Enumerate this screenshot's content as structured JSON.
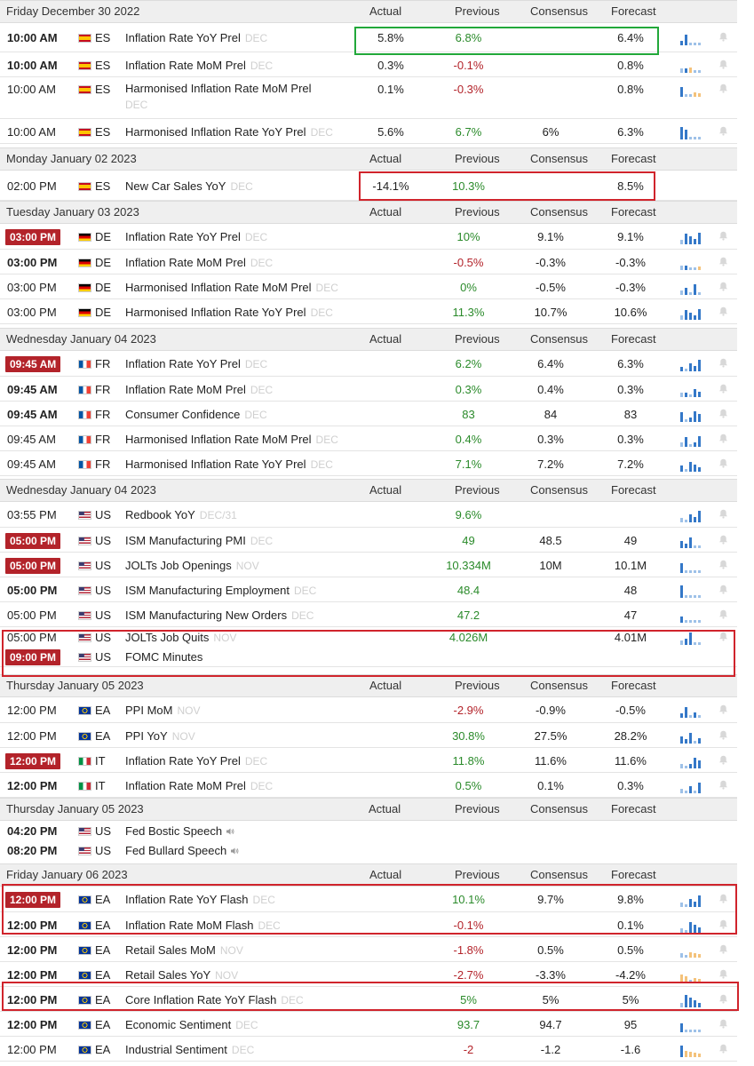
{
  "columns": {
    "actual": "Actual",
    "previous": "Previous",
    "consensus": "Consensus",
    "forecast": "Forecast"
  },
  "flags": {
    "ES": {
      "colors": [
        "#c60b1e",
        "#ffc400",
        "#c60b1e"
      ],
      "stripes": "h3",
      "ratio": [
        1,
        2,
        1
      ]
    },
    "DE": {
      "colors": [
        "#000000",
        "#dd0000",
        "#ffce00"
      ],
      "stripes": "h3",
      "ratio": [
        1,
        1,
        1
      ]
    },
    "FR": {
      "colors": [
        "#0055a4",
        "#ffffff",
        "#ef4135"
      ],
      "stripes": "v3",
      "ratio": [
        1,
        1,
        1
      ]
    },
    "IT": {
      "colors": [
        "#009246",
        "#ffffff",
        "#ce2b37"
      ],
      "stripes": "v3",
      "ratio": [
        1,
        1,
        1
      ]
    },
    "US": {
      "colors": [
        "#b22234",
        "#ffffff",
        "#3c3b6e"
      ],
      "stripes": "us",
      "ratio": [
        1,
        1,
        1
      ]
    },
    "EA": {
      "colors": [
        "#003399",
        "#ffcc00"
      ],
      "stripes": "eu",
      "ratio": [
        1,
        1
      ]
    }
  },
  "colors": {
    "positive": "#2a8a2a",
    "negative": "#b3232a",
    "highlight_red": "#d0242c",
    "highlight_green": "#22a83a",
    "header_bg": "#efefef"
  },
  "sections": [
    {
      "date": "Friday December 30 2022",
      "events": [
        {
          "time": "10:00 AM",
          "style": "bold",
          "country": "ES",
          "name": "Inflation Rate YoY Prel",
          "ref": "DEC",
          "actual": "5.8%",
          "previous": "6.8%",
          "previous_color": "green",
          "consensus": "",
          "forecast": "6.4%",
          "spark": [
            "b",
            "b",
            "g",
            "g",
            "g"
          ]
        },
        {
          "time": "10:00 AM",
          "style": "bold",
          "country": "ES",
          "name": "Inflation Rate MoM Prel",
          "ref": "DEC",
          "actual": "0.3%",
          "previous": "-0.1%",
          "previous_color": "red",
          "consensus": "",
          "forecast": "0.8%",
          "spark": [
            "g",
            "b",
            "o",
            "g",
            "g"
          ]
        },
        {
          "time": "10:00 AM",
          "style": "normal",
          "country": "ES",
          "name": "Harmonised Inflation Rate MoM Prel",
          "ref": "DEC",
          "actual": "0.1%",
          "previous": "-0.3%",
          "previous_color": "red",
          "consensus": "",
          "forecast": "0.8%",
          "spark": [
            "b",
            "g",
            "g",
            "o",
            "o"
          ],
          "two_line": true
        },
        {
          "time": "10:00 AM",
          "style": "normal",
          "country": "ES",
          "name": "Harmonised Inflation Rate YoY Prel",
          "ref": "DEC",
          "actual": "5.6%",
          "previous": "6.7%",
          "previous_color": "green",
          "consensus": "6%",
          "forecast": "6.3%",
          "spark": [
            "b",
            "b",
            "g",
            "g",
            "g"
          ]
        }
      ]
    },
    {
      "date": "Monday January 02 2023",
      "events": [
        {
          "time": "02:00 PM",
          "style": "normal",
          "country": "ES",
          "name": "New Car Sales YoY",
          "ref": "DEC",
          "actual": "-14.1%",
          "previous": "10.3%",
          "previous_color": "green",
          "consensus": "",
          "forecast": "8.5%",
          "spark": [],
          "no_bell": true
        }
      ]
    },
    {
      "date": "Tuesday January 03 2023",
      "events": [
        {
          "time": "03:00 PM",
          "style": "pill",
          "country": "DE",
          "name": "Inflation Rate YoY Prel",
          "ref": "DEC",
          "actual": "",
          "previous": "10%",
          "previous_color": "green",
          "consensus": "9.1%",
          "forecast": "9.1%",
          "spark": [
            "g",
            "b",
            "b",
            "b",
            "b"
          ]
        },
        {
          "time": "03:00 PM",
          "style": "bold",
          "country": "DE",
          "name": "Inflation Rate MoM Prel",
          "ref": "DEC",
          "actual": "",
          "previous": "-0.5%",
          "previous_color": "red",
          "consensus": "-0.3%",
          "forecast": "-0.3%",
          "spark": [
            "g",
            "b",
            "g",
            "g",
            "o"
          ]
        },
        {
          "time": "03:00 PM",
          "style": "normal",
          "country": "DE",
          "name": "Harmonised Inflation Rate MoM Prel",
          "ref": "DEC",
          "actual": "",
          "previous": "0%",
          "previous_color": "green",
          "consensus": "-0.5%",
          "forecast": "-0.3%",
          "spark": [
            "g",
            "b",
            "g",
            "b",
            "g"
          ]
        },
        {
          "time": "03:00 PM",
          "style": "normal",
          "country": "DE",
          "name": "Harmonised Inflation Rate YoY Prel",
          "ref": "DEC",
          "actual": "",
          "previous": "11.3%",
          "previous_color": "green",
          "consensus": "10.7%",
          "forecast": "10.6%",
          "spark": [
            "g",
            "b",
            "b",
            "b",
            "b"
          ]
        }
      ]
    },
    {
      "date": "Wednesday January 04 2023",
      "events": [
        {
          "time": "09:45 AM",
          "style": "pill",
          "country": "FR",
          "name": "Inflation Rate YoY Prel",
          "ref": "DEC",
          "actual": "",
          "previous": "6.2%",
          "previous_color": "green",
          "consensus": "6.4%",
          "forecast": "6.3%",
          "spark": [
            "b",
            "g",
            "b",
            "b",
            "b"
          ]
        },
        {
          "time": "09:45 AM",
          "style": "bold",
          "country": "FR",
          "name": "Inflation Rate MoM Prel",
          "ref": "DEC",
          "actual": "",
          "previous": "0.3%",
          "previous_color": "green",
          "consensus": "0.4%",
          "forecast": "0.3%",
          "spark": [
            "g",
            "b",
            "g",
            "b",
            "b"
          ]
        },
        {
          "time": "09:45 AM",
          "style": "bold",
          "country": "FR",
          "name": "Consumer Confidence",
          "ref": "DEC",
          "actual": "",
          "previous": "83",
          "previous_color": "green",
          "consensus": "84",
          "forecast": "83",
          "spark": [
            "b",
            "g",
            "b",
            "b",
            "b"
          ]
        },
        {
          "time": "09:45 AM",
          "style": "normal",
          "country": "FR",
          "name": "Harmonised Inflation Rate MoM Prel",
          "ref": "DEC",
          "actual": "",
          "previous": "0.4%",
          "previous_color": "green",
          "consensus": "0.3%",
          "forecast": "0.3%",
          "spark": [
            "g",
            "b",
            "g",
            "b",
            "b"
          ]
        },
        {
          "time": "09:45 AM",
          "style": "normal",
          "country": "FR",
          "name": "Harmonised Inflation Rate YoY Prel",
          "ref": "DEC",
          "actual": "",
          "previous": "7.1%",
          "previous_color": "green",
          "consensus": "7.2%",
          "forecast": "7.2%",
          "spark": [
            "b",
            "g",
            "b",
            "b",
            "b"
          ]
        }
      ]
    },
    {
      "date": "Wednesday January 04 2023",
      "events": [
        {
          "time": "03:55 PM",
          "style": "normal",
          "country": "US",
          "name": "Redbook YoY",
          "ref": "DEC/31",
          "actual": "",
          "previous": "9.6%",
          "previous_color": "green",
          "consensus": "",
          "forecast": "",
          "spark": [
            "g",
            "g",
            "b",
            "b",
            "b"
          ]
        },
        {
          "time": "05:00 PM",
          "style": "pill",
          "country": "US",
          "name": "ISM Manufacturing PMI",
          "ref": "DEC",
          "actual": "",
          "previous": "49",
          "previous_color": "green",
          "consensus": "48.5",
          "forecast": "49",
          "spark": [
            "b",
            "b",
            "b",
            "g",
            "g"
          ]
        },
        {
          "time": "05:00 PM",
          "style": "pill",
          "country": "US",
          "name": "JOLTs Job Openings",
          "ref": "NOV",
          "actual": "",
          "previous": "10.334M",
          "previous_color": "green",
          "consensus": "10M",
          "forecast": "10.1M",
          "spark": [
            "b",
            "g",
            "g",
            "g",
            "g"
          ]
        },
        {
          "time": "05:00 PM",
          "style": "bold",
          "country": "US",
          "name": "ISM Manufacturing Employment",
          "ref": "DEC",
          "actual": "",
          "previous": "48.4",
          "previous_color": "green",
          "consensus": "",
          "forecast": "48",
          "spark": [
            "b",
            "g",
            "g",
            "g",
            "g"
          ]
        },
        {
          "time": "05:00 PM",
          "style": "normal",
          "country": "US",
          "name": "ISM Manufacturing New Orders",
          "ref": "DEC",
          "actual": "",
          "previous": "47.2",
          "previous_color": "green",
          "consensus": "",
          "forecast": "47",
          "spark": [
            "b",
            "g",
            "g",
            "g",
            "g"
          ]
        },
        {
          "time": "05:00 PM",
          "style": "normal",
          "country": "US",
          "name": "JOLTs Job Quits",
          "ref": "NOV",
          "actual": "",
          "previous": "4.026M",
          "previous_color": "green",
          "consensus": "",
          "forecast": "4.01M",
          "spark": [
            "g",
            "b",
            "b",
            "g",
            "g"
          ],
          "no_border": true
        },
        {
          "time": "09:00 PM",
          "style": "pill",
          "country": "US",
          "name": "FOMC Minutes",
          "ref": "",
          "actual": "",
          "previous": "",
          "previous_color": "",
          "consensus": "",
          "forecast": "",
          "spark": [],
          "no_bell": true
        }
      ]
    },
    {
      "date": "Thursday January 05 2023",
      "events": [
        {
          "time": "12:00 PM",
          "style": "normal",
          "country": "EA",
          "name": "PPI MoM",
          "ref": "NOV",
          "actual": "",
          "previous": "-2.9%",
          "previous_color": "red",
          "consensus": "-0.9%",
          "forecast": "-0.5%",
          "spark": [
            "b",
            "b",
            "g",
            "b",
            "g"
          ]
        },
        {
          "time": "12:00 PM",
          "style": "normal",
          "country": "EA",
          "name": "PPI YoY",
          "ref": "NOV",
          "actual": "",
          "previous": "30.8%",
          "previous_color": "green",
          "consensus": "27.5%",
          "forecast": "28.2%",
          "spark": [
            "b",
            "b",
            "b",
            "g",
            "b"
          ]
        },
        {
          "time": "12:00 PM",
          "style": "pill",
          "country": "IT",
          "name": "Inflation Rate YoY Prel",
          "ref": "DEC",
          "actual": "",
          "previous": "11.8%",
          "previous_color": "green",
          "consensus": "11.6%",
          "forecast": "11.6%",
          "spark": [
            "g",
            "g",
            "b",
            "b",
            "b"
          ]
        },
        {
          "time": "12:00 PM",
          "style": "bold",
          "country": "IT",
          "name": "Inflation Rate MoM Prel",
          "ref": "DEC",
          "actual": "",
          "previous": "0.5%",
          "previous_color": "green",
          "consensus": "0.1%",
          "forecast": "0.3%",
          "spark": [
            "g",
            "g",
            "b",
            "g",
            "b"
          ]
        }
      ]
    },
    {
      "date": "Thursday January 05 2023",
      "events": [
        {
          "time": "04:20 PM",
          "style": "bold",
          "country": "US",
          "name": "Fed Bostic Speech",
          "ref": "",
          "actual": "",
          "previous": "",
          "previous_color": "",
          "consensus": "",
          "forecast": "",
          "spark": [],
          "speaker": true,
          "no_bell": true,
          "no_border": true
        },
        {
          "time": "08:20 PM",
          "style": "bold",
          "country": "US",
          "name": "Fed Bullard Speech",
          "ref": "",
          "actual": "",
          "previous": "",
          "previous_color": "",
          "consensus": "",
          "forecast": "",
          "spark": [],
          "speaker": true,
          "no_bell": true,
          "no_border": true
        }
      ]
    },
    {
      "date": "Friday January 06 2023",
      "events": [
        {
          "time": "12:00 PM",
          "style": "pill",
          "country": "EA",
          "name": "Inflation Rate YoY Flash",
          "ref": "DEC",
          "actual": "",
          "previous": "10.1%",
          "previous_color": "green",
          "consensus": "9.7%",
          "forecast": "9.8%",
          "spark": [
            "g",
            "g",
            "b",
            "b",
            "b"
          ]
        },
        {
          "time": "12:00 PM",
          "style": "bold",
          "country": "EA",
          "name": "Inflation Rate MoM Flash",
          "ref": "DEC",
          "actual": "",
          "previous": "-0.1%",
          "previous_color": "red",
          "consensus": "",
          "forecast": "0.1%",
          "spark": [
            "g",
            "g",
            "b",
            "b",
            "b"
          ]
        },
        {
          "time": "12:00 PM",
          "style": "bold",
          "country": "EA",
          "name": "Retail Sales MoM",
          "ref": "NOV",
          "actual": "",
          "previous": "-1.8%",
          "previous_color": "red",
          "consensus": "0.5%",
          "forecast": "0.5%",
          "spark": [
            "g",
            "g",
            "o",
            "o",
            "o"
          ]
        },
        {
          "time": "12:00 PM",
          "style": "bold",
          "country": "EA",
          "name": "Retail Sales YoY",
          "ref": "NOV",
          "actual": "",
          "previous": "-2.7%",
          "previous_color": "red",
          "consensus": "-3.3%",
          "forecast": "-4.2%",
          "spark": [
            "o",
            "o",
            "g",
            "o",
            "o"
          ]
        },
        {
          "time": "12:00 PM",
          "style": "bold",
          "country": "EA",
          "name": "Core Inflation Rate YoY Flash",
          "ref": "DEC",
          "actual": "",
          "previous": "5%",
          "previous_color": "green",
          "consensus": "5%",
          "forecast": "5%",
          "spark": [
            "g",
            "b",
            "b",
            "b",
            "b"
          ]
        },
        {
          "time": "12:00 PM",
          "style": "bold",
          "country": "EA",
          "name": "Economic Sentiment",
          "ref": "DEC",
          "actual": "",
          "previous": "93.7",
          "previous_color": "green",
          "consensus": "94.7",
          "forecast": "95",
          "spark": [
            "b",
            "g",
            "g",
            "g",
            "g"
          ]
        },
        {
          "time": "12:00 PM",
          "style": "normal",
          "country": "EA",
          "name": "Industrial Sentiment",
          "ref": "DEC",
          "actual": "",
          "previous": "-2",
          "previous_color": "red",
          "consensus": "-1.2",
          "forecast": "-1.6",
          "spark": [
            "b",
            "o",
            "o",
            "o",
            "o"
          ]
        }
      ]
    }
  ]
}
